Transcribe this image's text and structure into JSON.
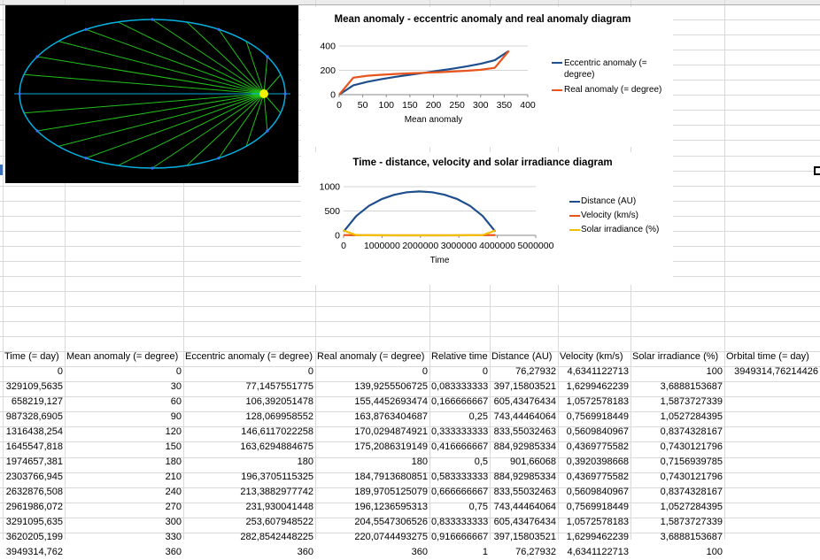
{
  "colors": {
    "orbit": "#00b0e0",
    "radii": "#22c01a",
    "sun": "#f2f200",
    "eccentric": "#1f4e8c",
    "real": "#e8541c",
    "distance": "#1f4e8c",
    "velocity": "#e8541c",
    "irradiance": "#f0c000",
    "gridline": "#d4d4d4"
  },
  "table": {
    "headers": [
      "Time (= day)",
      "Mean anomaly (= degree)",
      "Eccentric anomaly (= degree)",
      "Real anomaly (= degree)",
      "Relative time",
      "Distance (AU)",
      "Velocity (km/s)",
      "Solar irradiance (%)",
      "Orbital time (= day)"
    ],
    "rows": [
      [
        "0",
        "0",
        "0",
        "0",
        "0",
        "76,27932",
        "4,6341122713",
        "100",
        "3949314,76214426"
      ],
      [
        "329109,5635",
        "30",
        "77,1457551775",
        "139,9255506725",
        "0,083333333",
        "397,15803521",
        "1,6299462239",
        "3,6888153687",
        ""
      ],
      [
        "658219,127",
        "60",
        "106,392051478",
        "155,4452693474",
        "0,166666667",
        "605,43476434",
        "1,0572578183",
        "1,5873727339",
        ""
      ],
      [
        "987328,6905",
        "90",
        "128,069958552",
        "163,8763404687",
        "0,25",
        "743,44464064",
        "0,7569918449",
        "1,0527284395",
        ""
      ],
      [
        "1316438,254",
        "120",
        "146,6117022258",
        "170,0294874921",
        "0,333333333",
        "833,55032463",
        "0,5609840967",
        "0,8374328167",
        ""
      ],
      [
        "1645547,818",
        "150",
        "163,6294884675",
        "175,2086319149",
        "0,416666667",
        "884,92985334",
        "0,4369775582",
        "0,7430121796",
        ""
      ],
      [
        "1974657,381",
        "180",
        "180",
        "180",
        "0,5",
        "901,66068",
        "0,3920398668",
        "0,7156939785",
        ""
      ],
      [
        "2303766,945",
        "210",
        "196,3705115325",
        "184,7913680851",
        "0,583333333",
        "884,92985334",
        "0,4369775582",
        "0,7430121796",
        ""
      ],
      [
        "2632876,508",
        "240",
        "213,3882977742",
        "189,9705125079",
        "0,666666667",
        "833,55032463",
        "0,5609840967",
        "0,8374328167",
        ""
      ],
      [
        "2961986,072",
        "270",
        "231,930041448",
        "196,1236595313",
        "0,75",
        "743,44464064",
        "0,7569918449",
        "1,0527284395",
        ""
      ],
      [
        "3291095,635",
        "300",
        "253,607948522",
        "204,5547306526",
        "0,833333333",
        "605,43476434",
        "1,0572578183",
        "1,5873727339",
        ""
      ],
      [
        "3620205,199",
        "330",
        "282,8542448225",
        "220,0744493275",
        "0,916666667",
        "397,15803521",
        "1,6299462239",
        "3,6888153687",
        ""
      ],
      [
        "3949314,762",
        "360",
        "360",
        "360",
        "1",
        "76,27932",
        "4,6341122713",
        "100",
        ""
      ]
    ]
  },
  "chart_data": [
    {
      "type": "line",
      "title": "Mean anomaly - eccentric anomaly and real anomaly diagram",
      "xlabel": "Mean anomaly",
      "ylabel": "",
      "xlim": [
        0,
        400
      ],
      "ylim": [
        0,
        400
      ],
      "xticks": [
        "0",
        "50",
        "100",
        "150",
        "200",
        "250",
        "300",
        "350",
        "400"
      ],
      "yticks": [
        "0",
        "200",
        "400"
      ],
      "x": [
        0,
        30,
        60,
        90,
        120,
        150,
        180,
        210,
        240,
        270,
        300,
        330,
        360
      ],
      "series": [
        {
          "name": "Eccentric anomaly (= degree)",
          "values": [
            0,
            77.15,
            106.39,
            128.07,
            146.61,
            163.63,
            180,
            196.37,
            213.39,
            231.93,
            253.61,
            282.85,
            360
          ]
        },
        {
          "name": "Real anomaly (= degree)",
          "values": [
            0,
            139.93,
            155.45,
            163.88,
            170.03,
            175.21,
            180,
            184.79,
            189.97,
            196.12,
            204.55,
            220.07,
            360
          ]
        }
      ],
      "legend": "right",
      "grid": true
    },
    {
      "type": "line",
      "title": "Time - distance, velocity and solar irradiance diagram",
      "xlabel": "Time",
      "ylabel": "",
      "xlim": [
        0,
        5000000
      ],
      "ylim": [
        0,
        1000
      ],
      "xticks": [
        "0",
        "1000000",
        "2000000",
        "3000000",
        "4000000",
        "5000000"
      ],
      "yticks": [
        "0",
        "500",
        "1000"
      ],
      "x": [
        0,
        329109.56,
        658219.13,
        987328.69,
        1316438.25,
        1645547.82,
        1974657.38,
        2303766.95,
        2632876.51,
        2961986.07,
        3291095.64,
        3620205.2,
        3949314.76
      ],
      "series": [
        {
          "name": "Distance (AU)",
          "values": [
            76.28,
            397.16,
            605.43,
            743.44,
            833.55,
            884.93,
            901.66,
            884.93,
            833.55,
            743.44,
            605.43,
            397.16,
            76.28
          ]
        },
        {
          "name": "Velocity (km/s)",
          "values": [
            4.63,
            1.63,
            1.06,
            0.76,
            0.56,
            0.44,
            0.39,
            0.44,
            0.56,
            0.76,
            1.06,
            1.63,
            4.63
          ]
        },
        {
          "name": "Solar irradiance (%)",
          "values": [
            100,
            3.69,
            1.59,
            1.05,
            0.84,
            0.74,
            0.72,
            0.74,
            0.84,
            1.05,
            1.59,
            3.69,
            100
          ]
        }
      ],
      "legend": "right",
      "grid": true
    }
  ]
}
